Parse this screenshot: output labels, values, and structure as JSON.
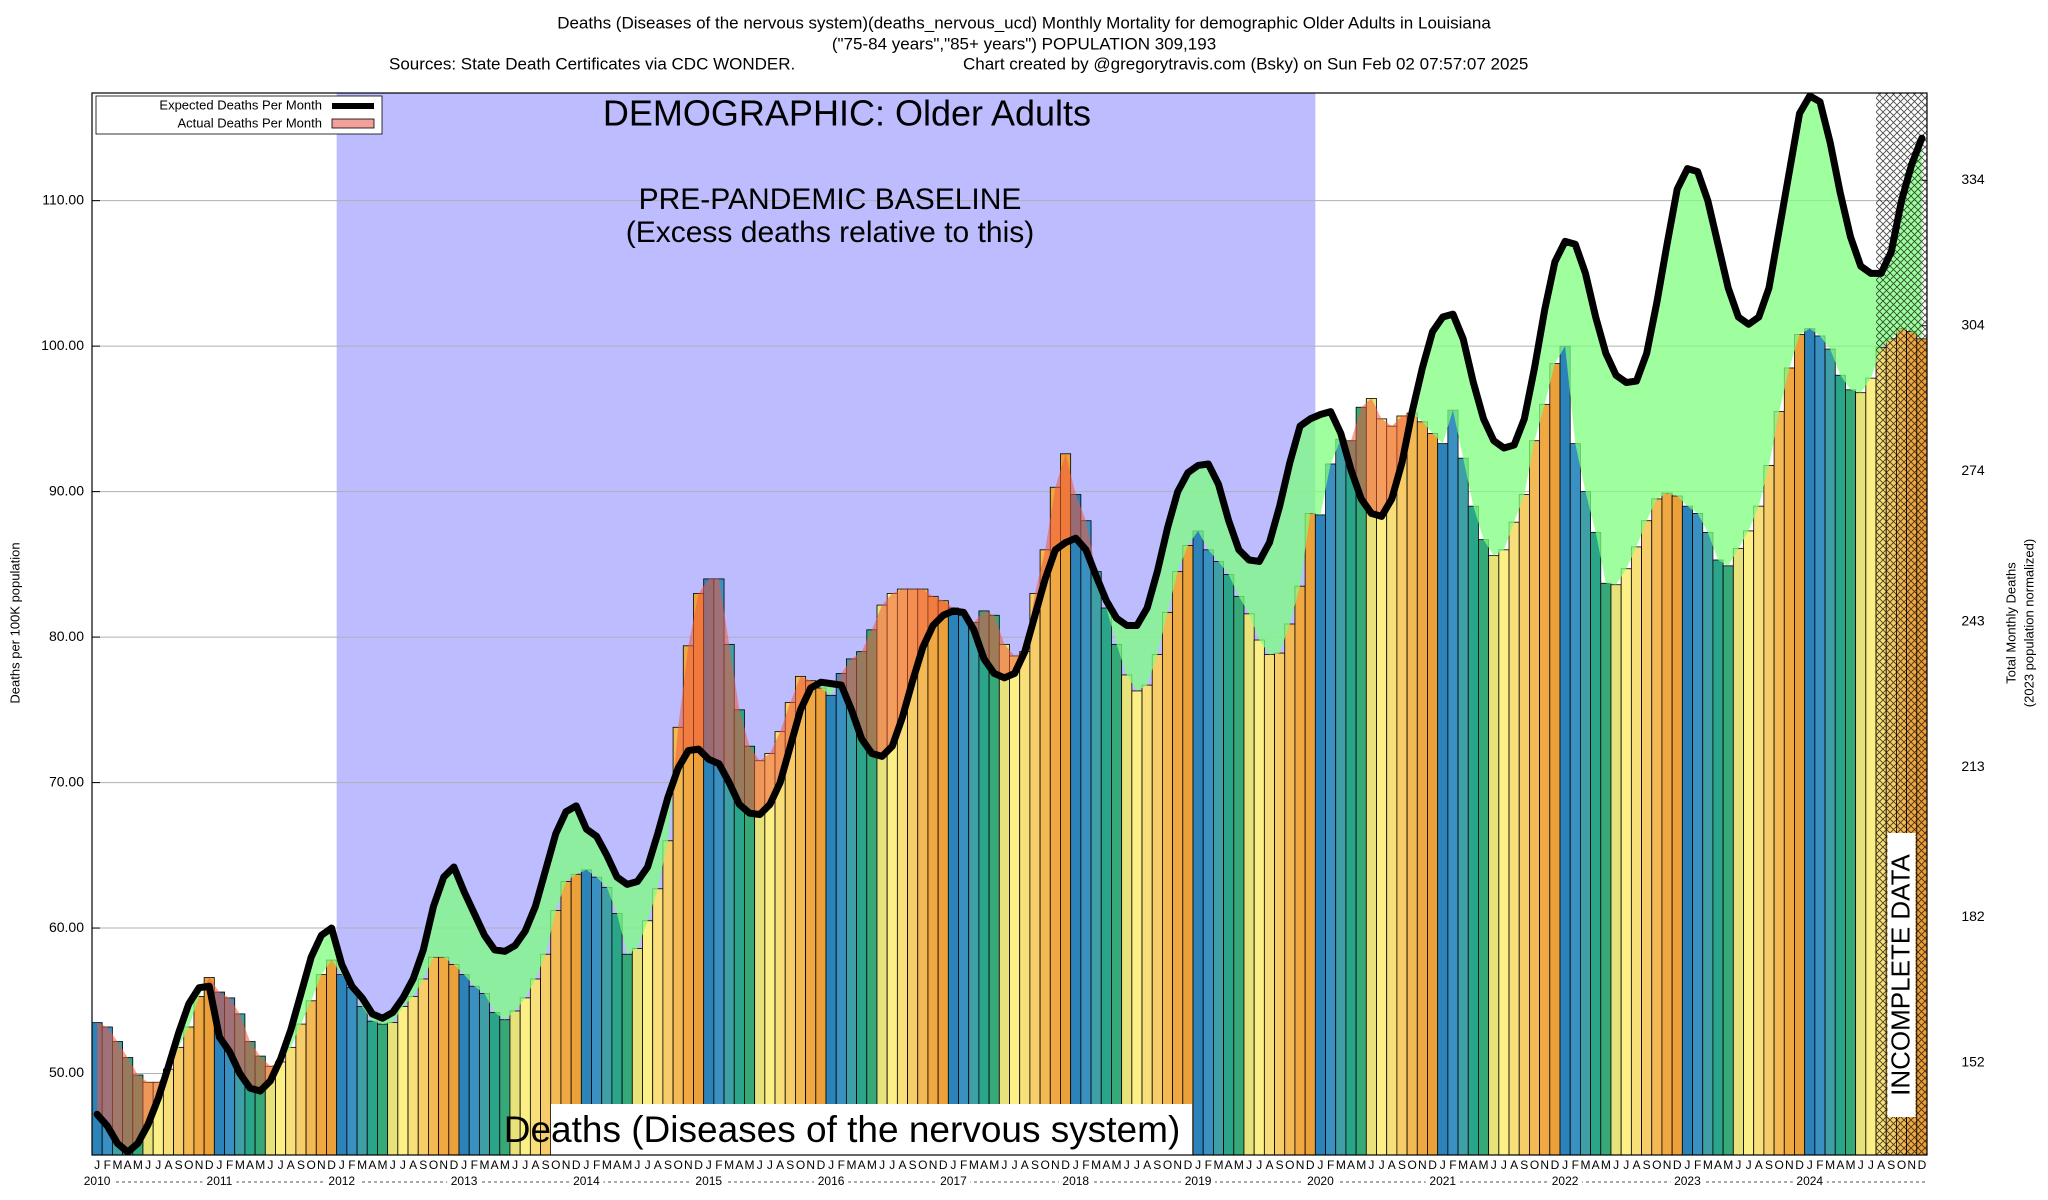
{
  "chart_data": {
    "type": "bar",
    "title_lines": [
      "Deaths (Diseases of the nervous system)(deaths_nervous_ucd) Monthly Mortality for demographic Older Adults in Louisiana",
      "(\"75-84 years\",\"85+ years\") POPULATION 309,193"
    ],
    "sources": "Sources: State Death Certificates via CDC WONDER.",
    "credit": "Chart created by @gregorytravis.com (Bsky) on Sun Feb 02 07:57:07 2025",
    "annotations": {
      "demographic": "DEMOGRAPHIC: Older Adults",
      "baseline": "PRE-PANDEMIC BASELINE",
      "baseline_note": "(Excess deaths relative to this)",
      "cause": "Deaths (Diseases of the nervous system)",
      "incomplete": "INCOMPLETE DATA"
    },
    "ylabel": "Deaths per 100K population",
    "y2label": [
      "Total Monthly Deaths",
      "(2023 population normalized)"
    ],
    "categories": [
      "J",
      "F",
      "M",
      "A",
      "M",
      "J",
      "J",
      "A",
      "S",
      "O",
      "N",
      "D",
      "J",
      "F",
      "M",
      "A",
      "M",
      "J",
      "J",
      "A",
      "S",
      "O",
      "N",
      "D",
      "J",
      "F",
      "M",
      "A",
      "M",
      "J",
      "J",
      "A",
      "S",
      "O",
      "N",
      "D",
      "J",
      "F",
      "M",
      "A",
      "M",
      "J",
      "J",
      "A",
      "S",
      "O",
      "N",
      "D",
      "J",
      "F",
      "M",
      "A",
      "M",
      "J",
      "J",
      "A",
      "S",
      "O",
      "N",
      "D",
      "J",
      "F",
      "M",
      "A",
      "M",
      "J",
      "J",
      "A",
      "S",
      "O",
      "N",
      "D",
      "J",
      "F",
      "M",
      "A",
      "M",
      "J",
      "J",
      "A",
      "S",
      "O",
      "N",
      "D",
      "J",
      "F",
      "M",
      "A",
      "M",
      "J",
      "J",
      "A",
      "S",
      "O",
      "N",
      "D",
      "J",
      "F",
      "M",
      "A",
      "M",
      "J",
      "J",
      "A",
      "S",
      "O",
      "N",
      "D",
      "J",
      "F",
      "M",
      "A",
      "M",
      "J",
      "J",
      "A",
      "S",
      "O",
      "N",
      "D",
      "J",
      "F",
      "M",
      "A",
      "M",
      "J",
      "J",
      "A",
      "S",
      "O",
      "N",
      "D",
      "J",
      "F",
      "M",
      "A",
      "M",
      "J",
      "J",
      "A",
      "S",
      "O",
      "N",
      "D",
      "J",
      "F",
      "M",
      "A",
      "M",
      "J",
      "J",
      "A",
      "S",
      "O",
      "N",
      "D",
      "J",
      "F",
      "M",
      "A",
      "M",
      "J",
      "J",
      "A",
      "S",
      "O",
      "N",
      "D",
      "J",
      "F",
      "M",
      "A",
      "M",
      "J",
      "J",
      "A",
      "S",
      "O",
      "N",
      "D"
    ],
    "years": [
      "2010",
      "2011",
      "2012",
      "2013",
      "2014",
      "2015",
      "2016",
      "2017",
      "2018",
      "2019",
      "2020",
      "2021",
      "2022",
      "2023",
      "2024"
    ],
    "baseline_years": [
      "2012",
      "2019"
    ],
    "incomplete_count": 5,
    "month_colors": [
      "#2b83ba",
      "#3a90c0",
      "#3e9fa6",
      "#2ba58a",
      "#37a878",
      "#e8e27a",
      "#fbef86",
      "#f8df7a",
      "#f6cd68",
      "#f3b954",
      "#f0a843",
      "#eca03a"
    ],
    "series": [
      {
        "name": "Expected Deaths Per Month",
        "color": "#000000",
        "values": [
          47.2,
          46.4,
          45.2,
          44.6,
          45.2,
          46.5,
          48.3,
          50.5,
          52.8,
          54.8,
          55.9,
          56.0,
          52.5,
          51.5,
          50.0,
          49.0,
          48.8,
          49.5,
          51.0,
          53.0,
          55.5,
          58.0,
          59.5,
          60.0,
          57.5,
          56.0,
          55.2,
          54.1,
          53.8,
          54.2,
          55.2,
          56.5,
          58.5,
          61.5,
          63.5,
          64.2,
          62.5,
          61.0,
          59.5,
          58.5,
          58.4,
          58.8,
          59.8,
          61.5,
          64.0,
          66.5,
          68.0,
          68.4,
          66.8,
          66.3,
          65.0,
          63.5,
          63.0,
          63.2,
          64.2,
          66.5,
          69.0,
          71.0,
          72.2,
          72.3,
          71.6,
          71.3,
          70.0,
          68.5,
          67.9,
          67.8,
          68.5,
          70.0,
          72.5,
          75.0,
          76.5,
          76.9,
          76.8,
          76.7,
          75.0,
          73.0,
          72.0,
          71.8,
          72.5,
          74.5,
          77.0,
          79.3,
          80.8,
          81.5,
          81.8,
          81.7,
          80.5,
          78.5,
          77.5,
          77.2,
          77.5,
          79.0,
          81.5,
          84.0,
          86.0,
          86.5,
          86.8,
          86.0,
          84.2,
          82.5,
          81.3,
          80.8,
          80.8,
          82.0,
          84.5,
          87.5,
          90.0,
          91.3,
          91.8,
          91.9,
          90.5,
          88.0,
          86.0,
          85.3,
          85.2,
          86.5,
          89.0,
          92.0,
          94.5,
          95.0,
          95.3,
          95.5,
          94.0,
          91.5,
          89.5,
          88.5,
          88.3,
          89.5,
          92.0,
          95.5,
          98.5,
          101.0,
          102.0,
          102.2,
          100.5,
          97.5,
          95.0,
          93.5,
          93.0,
          93.2,
          95.0,
          98.5,
          102.5,
          105.8,
          107.2,
          107.0,
          105.0,
          102.0,
          99.5,
          98.0,
          97.5,
          97.6,
          99.5,
          103.0,
          107.0,
          110.8,
          112.2,
          112.0,
          110.0,
          107.0,
          104.0,
          102.0,
          101.5,
          102.0,
          104.0,
          108.0,
          112.0,
          116.0,
          117.2,
          116.8,
          114.0,
          110.5,
          107.5,
          105.5,
          105.0,
          105.0,
          106.5,
          110.0,
          112.5,
          114.3
        ]
      },
      {
        "name": "Actual Deaths Per Month",
        "color": "#f4a09a",
        "values": [
          53.5,
          53.2,
          52.2,
          51.1,
          49.9,
          49.4,
          49.4,
          50.3,
          51.8,
          53.2,
          55.3,
          56.6,
          55.6,
          55.2,
          54.1,
          52.2,
          51.2,
          50.5,
          50.8,
          51.8,
          53.4,
          55.0,
          56.8,
          57.8,
          56.8,
          55.9,
          54.6,
          53.6,
          53.4,
          53.5,
          54.6,
          55.3,
          56.5,
          58.0,
          58.0,
          57.5,
          56.8,
          56.0,
          55.5,
          54.2,
          53.7,
          54.3,
          55.2,
          56.5,
          58.2,
          61.2,
          63.2,
          63.7,
          64.0,
          63.5,
          62.8,
          61.0,
          58.2,
          58.6,
          60.5,
          62.7,
          66.0,
          73.8,
          79.4,
          83.0,
          84.0,
          84.0,
          79.5,
          75.0,
          72.5,
          71.5,
          72.0,
          73.5,
          75.5,
          77.3,
          77.0,
          76.5,
          76.0,
          77.5,
          78.5,
          79.0,
          80.5,
          82.2,
          83.0,
          83.3,
          83.3,
          83.3,
          82.8,
          82.5,
          82.0,
          81.5,
          81.0,
          81.8,
          81.5,
          79.5,
          78.7,
          79.0,
          83.0,
          86.0,
          90.3,
          92.6,
          89.8,
          88.0,
          84.5,
          82.0,
          79.5,
          77.4,
          76.3,
          76.7,
          78.8,
          81.7,
          84.5,
          86.3,
          87.3,
          86.0,
          85.2,
          84.3,
          82.8,
          81.6,
          79.8,
          78.8,
          78.9,
          80.9,
          83.5,
          88.5,
          88.4,
          91.9,
          93.6,
          93.5,
          95.8,
          96.4,
          95.0,
          94.5,
          95.2,
          95.4,
          94.8,
          94.0,
          93.3,
          95.6,
          92.3,
          89.0,
          86.7,
          85.6,
          86.0,
          87.9,
          89.8,
          93.5,
          96.0,
          98.8,
          100.0,
          93.3,
          90.0,
          87.2,
          83.7,
          83.6,
          84.7,
          86.2,
          88.0,
          89.5,
          89.9,
          89.7,
          89.0,
          88.5,
          87.2,
          85.3,
          84.9,
          86.1,
          87.3,
          89.0,
          91.8,
          95.5,
          98.5,
          100.8,
          101.2,
          100.7,
          99.8,
          98.0,
          97.0,
          96.8,
          97.8,
          99.9,
          100.5,
          101.2,
          101.0,
          100.5
        ]
      }
    ],
    "excess_color": "#f05a3c",
    "deficit_color": "#7fff7f",
    "baseline_color": "#bcbcff",
    "ylim": [
      44.4,
      117.4
    ],
    "yticks": [
      {
        "value": 50,
        "label": "50.00"
      },
      {
        "value": 60,
        "label": "60.00"
      },
      {
        "value": 70,
        "label": "70.00"
      },
      {
        "value": 80,
        "label": "80.00"
      },
      {
        "value": 90,
        "label": "90.00"
      },
      {
        "value": 100,
        "label": "100.00"
      },
      {
        "value": 110,
        "label": "110.00"
      }
    ],
    "y2lim": [
      133,
      352
    ],
    "y2ticks": [
      152,
      182,
      213,
      243,
      274,
      304,
      334
    ],
    "grid": true,
    "legend": "upper left"
  }
}
